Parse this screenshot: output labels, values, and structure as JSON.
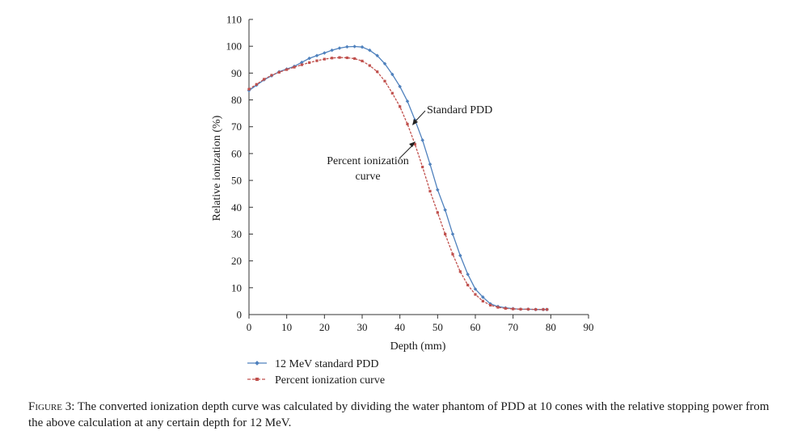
{
  "chart_data": {
    "type": "line",
    "title": "",
    "xlabel": "Depth (mm)",
    "ylabel": "Relative ionization (%)",
    "xlim": [
      0,
      90
    ],
    "ylim": [
      0,
      110
    ],
    "xticks": [
      0,
      10,
      20,
      30,
      40,
      50,
      60,
      70,
      80,
      90
    ],
    "yticks": [
      0,
      10,
      20,
      30,
      40,
      50,
      60,
      70,
      80,
      90,
      100,
      110
    ],
    "grid": false,
    "legend_position": "bottom-left",
    "series": [
      {
        "name": "12 MeV standard PDD",
        "color": "#4f81bd",
        "marker": "diamond",
        "line": "solid",
        "x": [
          0,
          2,
          4,
          6,
          8,
          10,
          12,
          14,
          16,
          18,
          20,
          22,
          24,
          26,
          28,
          30,
          32,
          34,
          36,
          38,
          40,
          42,
          44,
          46,
          48,
          50,
          52,
          54,
          56,
          58,
          60,
          62,
          64,
          66,
          68,
          70,
          72,
          74,
          76,
          78,
          79
        ],
        "y": [
          83.5,
          85.5,
          87.5,
          89,
          90.5,
          91.5,
          92.5,
          94,
          95.5,
          96.5,
          97.5,
          98.5,
          99.3,
          99.8,
          99.9,
          99.7,
          98.5,
          96.5,
          93.5,
          89.5,
          85,
          79.5,
          72.5,
          65,
          56,
          46.5,
          39,
          30,
          22,
          15,
          9.5,
          6.5,
          4,
          3,
          2.5,
          2.2,
          2,
          2,
          1.9,
          1.9,
          1.9
        ]
      },
      {
        "name": "Percent ionization curve",
        "color": "#c0504d",
        "marker": "square",
        "line": "dashed",
        "x": [
          0,
          2,
          4,
          6,
          8,
          10,
          12,
          14,
          16,
          18,
          20,
          22,
          24,
          26,
          28,
          30,
          32,
          34,
          36,
          38,
          40,
          42,
          44,
          46,
          48,
          50,
          52,
          54,
          56,
          58,
          60,
          62,
          64,
          66,
          68,
          70,
          72,
          74,
          76,
          78,
          79
        ],
        "y": [
          84,
          85.8,
          87.7,
          89.2,
          90.3,
          91.3,
          92.2,
          93.1,
          93.9,
          94.6,
          95.2,
          95.6,
          95.8,
          95.7,
          95.4,
          94.5,
          92.8,
          90.5,
          87,
          82.5,
          77.5,
          71,
          63.5,
          55,
          46,
          38,
          30,
          22.5,
          16,
          11,
          7.5,
          5,
          3.5,
          2.7,
          2.3,
          2.1,
          2,
          2,
          1.9,
          1.9,
          1.9
        ]
      }
    ],
    "annotations": [
      {
        "text": "Standard PDD",
        "target": [
          43.3,
          71
        ]
      },
      {
        "lines": [
          "Percent ionization",
          "curve"
        ],
        "target": [
          43.5,
          62
        ]
      }
    ]
  },
  "caption": {
    "label": "Figure 3",
    "text": ": The converted ionization depth curve was calculated by dividing the water phantom of PDD at 10 cones with the relative stopping power from the above calculation at any certain depth for 12 MeV."
  }
}
